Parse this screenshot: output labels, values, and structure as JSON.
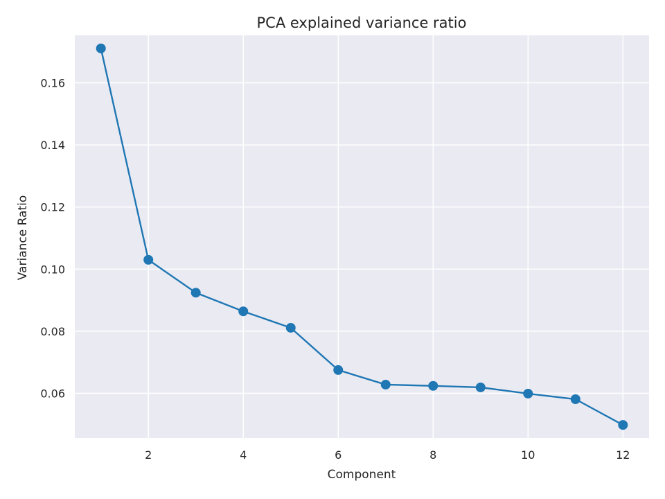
{
  "chart_data": {
    "type": "line",
    "title": "PCA explained variance ratio",
    "xlabel": "Component",
    "ylabel": "Variance Ratio",
    "x": [
      1,
      2,
      3,
      4,
      5,
      6,
      7,
      8,
      9,
      10,
      11,
      12
    ],
    "series": [
      {
        "values": [
          0.1711,
          0.103,
          0.0924,
          0.0864,
          0.0811,
          0.0675,
          0.0628,
          0.0624,
          0.0619,
          0.0599,
          0.0581,
          0.0498
        ]
      }
    ],
    "xlim": [
      0.45,
      12.55
    ],
    "ylim": [
      0.0456,
      0.1753
    ],
    "xticks": [
      2,
      4,
      6,
      8,
      10,
      12
    ],
    "xtick_labels": [
      "2",
      "4",
      "6",
      "8",
      "10",
      "12"
    ],
    "yticks": [
      0.06,
      0.08,
      0.1,
      0.12,
      0.14,
      0.16
    ],
    "ytick_labels": [
      "0.06",
      "0.08",
      "0.10",
      "0.12",
      "0.14",
      "0.16"
    ],
    "grid": true,
    "line_color": "#1f77b4",
    "plot_background": "#eaeaf2",
    "grid_color": "#ffffff",
    "marker": "circle"
  }
}
